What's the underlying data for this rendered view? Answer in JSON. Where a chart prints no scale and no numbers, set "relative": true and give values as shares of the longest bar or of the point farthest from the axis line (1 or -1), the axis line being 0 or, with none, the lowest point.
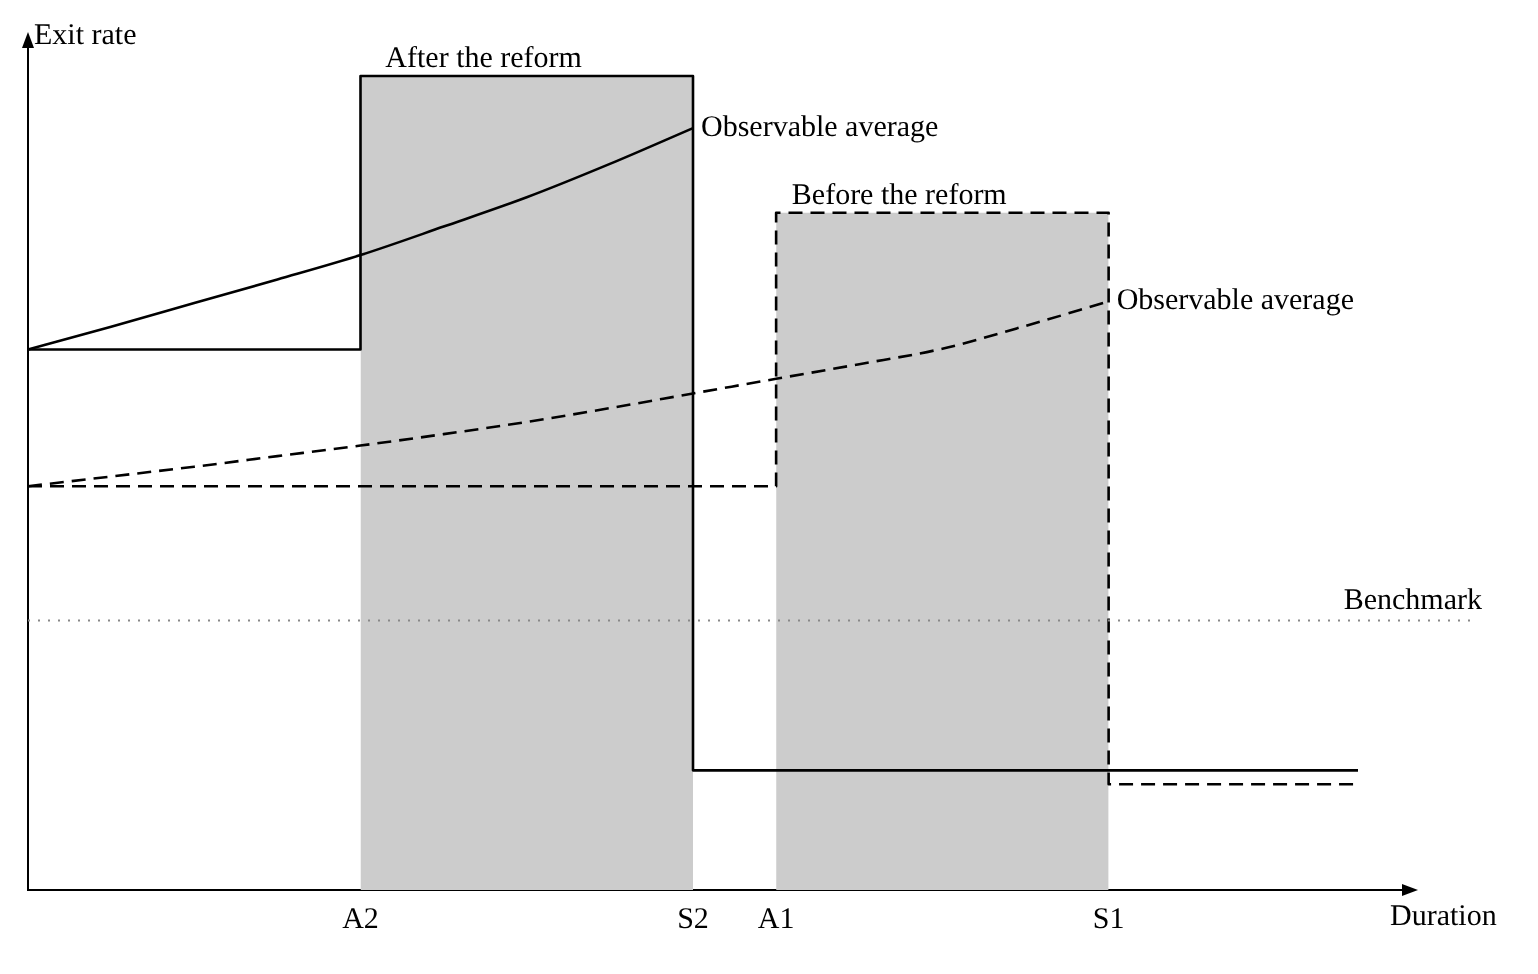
{
  "chart_data": {
    "type": "line",
    "relative": true,
    "xlabel": "Duration",
    "ylabel": "Exit rate",
    "categories": [
      null,
      null,
      null,
      null,
      "A2",
      null,
      null,
      null,
      "S2",
      "A1",
      null,
      null,
      null,
      "S1",
      null,
      null,
      null
    ],
    "series": [
      {
        "type": "area",
        "color": "#cccccc",
        "values": [
          null,
          null,
          null,
          null,
          1,
          1,
          1,
          1,
          1,
          null,
          null,
          null,
          null,
          null,
          null,
          null,
          null
        ]
      },
      {
        "type": "area",
        "color": "#cccccc",
        "values": [
          null,
          null,
          null,
          null,
          null,
          null,
          null,
          null,
          null,
          0.832,
          0.832,
          0.832,
          0.832,
          0.832,
          null,
          null,
          null
        ]
      },
      {
        "type": "step",
        "name": "After the reform",
        "color": "#000000",
        "line_style": "solid",
        "values": [
          0.664,
          0.664,
          0.664,
          0.664,
          1,
          1,
          1,
          1,
          0.147,
          0.147,
          0.147,
          0.147,
          0.147,
          0.147,
          0.147,
          0.147,
          0.147
        ]
      },
      {
        "type": "step",
        "name": "Before the reform",
        "color": "#000000",
        "line_style": "dashed",
        "values": [
          0.496,
          0.496,
          0.496,
          0.496,
          0.496,
          0.496,
          0.496,
          0.496,
          0.496,
          0.832,
          0.832,
          0.832,
          0.832,
          0.13,
          0.13,
          0.13,
          0.13
        ]
      },
      {
        "name": "Observable average",
        "color": "#000000",
        "line_style": "solid",
        "values": [
          0.664,
          0.692,
          0.721,
          0.75,
          0.78,
          0.815,
          0.851,
          0.892,
          0.936,
          null,
          null,
          null,
          null,
          null,
          null,
          null,
          null
        ]
      },
      {
        "name": "Observable average",
        "color": "#000000",
        "line_style": "dashed",
        "values": [
          0.496,
          0.508,
          0.52,
          0.533,
          0.546,
          0.56,
          0.575,
          0.592,
          0.61,
          0.628,
          0.646,
          0.665,
          0.693,
          0.723,
          null,
          null,
          null
        ]
      }
    ],
    "ref_lines": [
      {
        "axis": "y",
        "value": 0.331,
        "label": "Benchmark",
        "line_style": "dotted",
        "color": "#888888"
      }
    ],
    "marker": "none",
    "grid": false,
    "legend": false
  }
}
